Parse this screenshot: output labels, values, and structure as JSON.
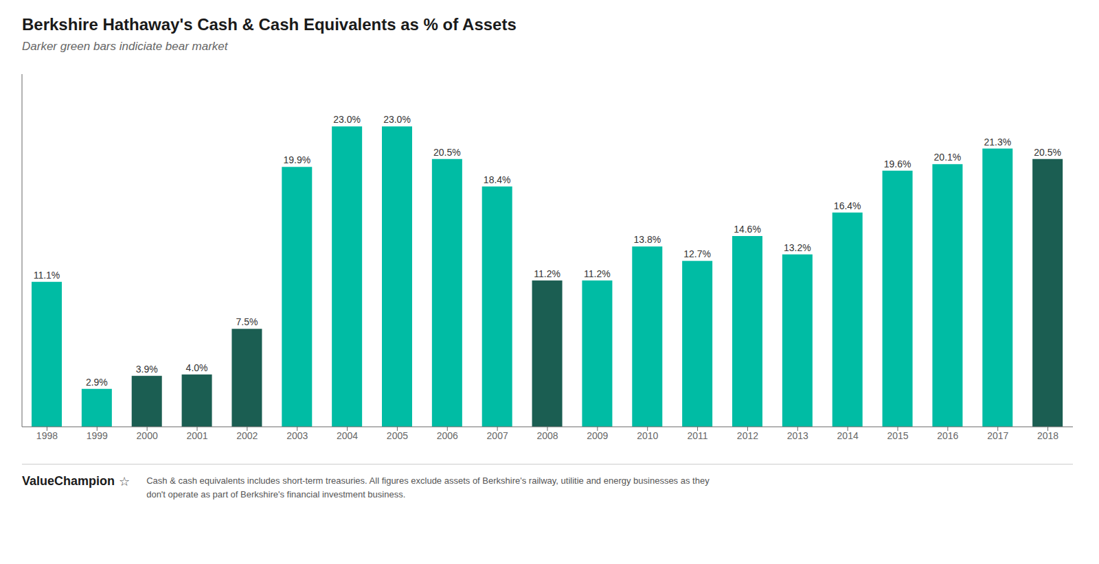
{
  "chart_data": {
    "type": "bar",
    "title": "Berkshire Hathaway's Cash & Cash Equivalents as % of Assets",
    "subtitle": "Darker green bars indiciate bear market",
    "annotations": [
      "ValueChampion",
      "☆",
      "Cash & cash equivalents includes short-term treasuries. All figures exclude assets of Berkshire's railway, utilitie and energy businesses as they\ndon't operate as part of Berkshire's financial investment business."
    ],
    "categories": [
      "1998",
      "1999",
      "2000",
      "2001",
      "2002",
      "2003",
      "2004",
      "2005",
      "2006",
      "2007",
      "2008",
      "2009",
      "2010",
      "2011",
      "2012",
      "2013",
      "2014",
      "2015",
      "2016",
      "2017",
      "2018"
    ],
    "values": [
      11.1,
      2.9,
      3.9,
      4.0,
      7.5,
      19.9,
      23.0,
      23.0,
      20.5,
      18.4,
      11.2,
      11.2,
      13.8,
      12.7,
      14.6,
      13.2,
      16.4,
      19.6,
      20.1,
      21.3,
      20.5
    ],
    "value_labels": [
      "11.1%",
      "2.9%",
      "3.9%",
      "4.0%",
      "7.5%",
      "19.9%",
      "23.0%",
      "23.0%",
      "20.5%",
      "18.4%",
      "11.2%",
      "11.2%",
      "13.8%",
      "12.7%",
      "14.6%",
      "13.2%",
      "16.4%",
      "19.6%",
      "20.1%",
      "21.3%",
      "20.5%"
    ],
    "colors": [
      "#00BCA4",
      "#00BCA4",
      "#1B5E52",
      "#1B5E52",
      "#1B5E52",
      "#00BCA4",
      "#00BCA4",
      "#00BCA4",
      "#00BCA4",
      "#00BCA4",
      "#1B5E52",
      "#00BCA4",
      "#00BCA4",
      "#00BCA4",
      "#00BCA4",
      "#00BCA4",
      "#00BCA4",
      "#00BCA4",
      "#00BCA4",
      "#00BCA4",
      "#1B5E52"
    ],
    "ylim": [
      0,
      27
    ],
    "yticks": [],
    "grid": false,
    "data_labels": true,
    "tick_labels": "x"
  }
}
